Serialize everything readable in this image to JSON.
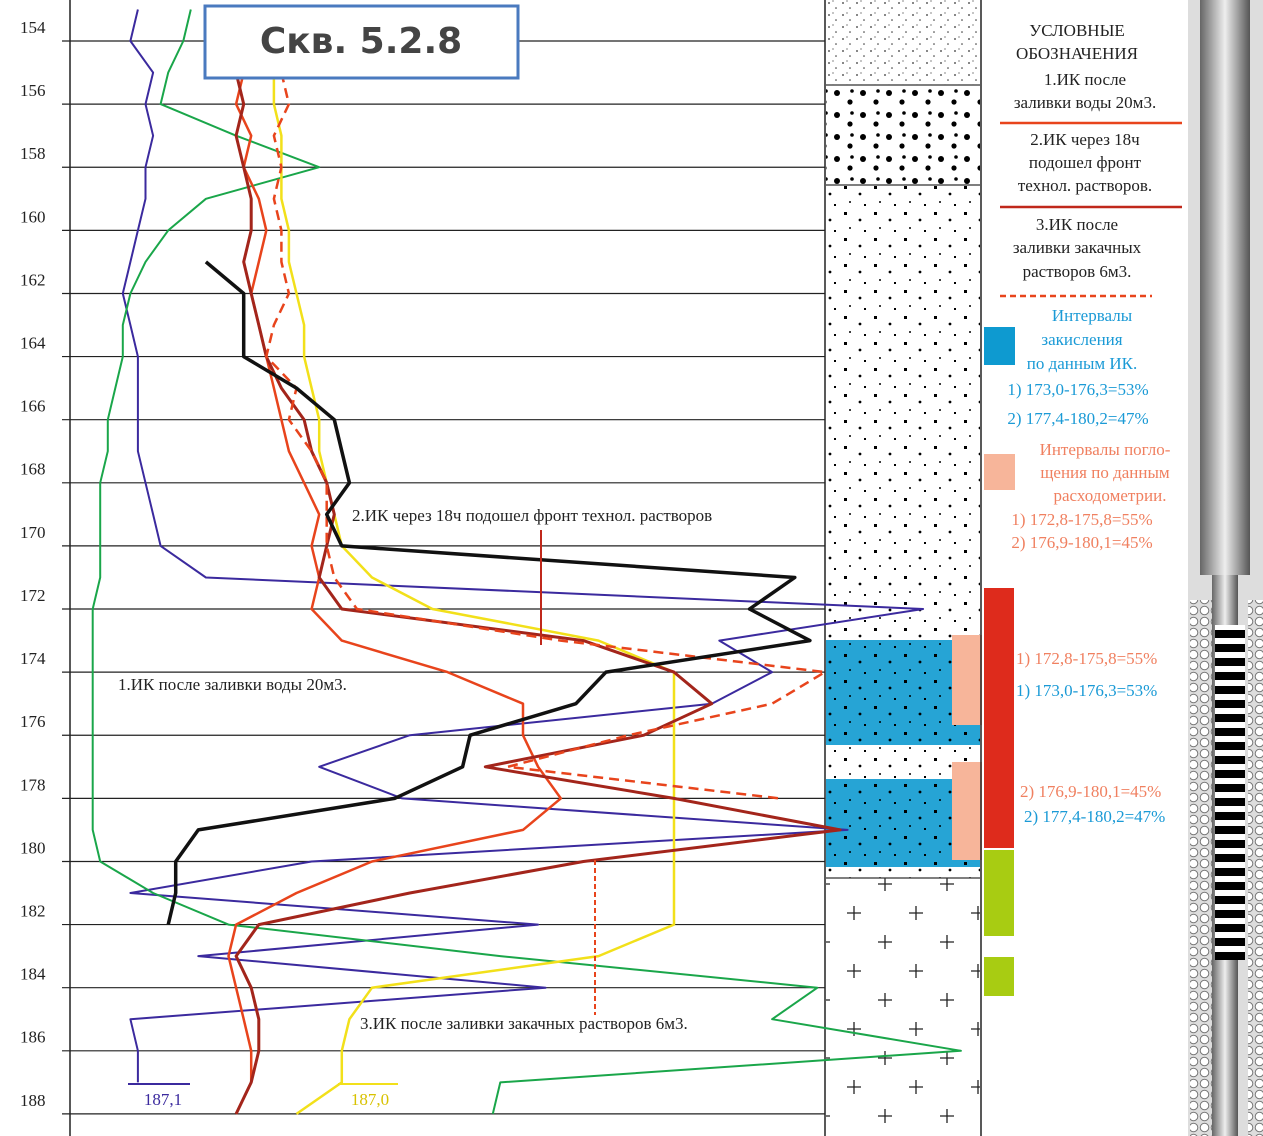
{
  "chart_data": {
    "type": "line",
    "title": "Скв. 5.2.8",
    "ylim": [
      152.7,
      188.7
    ],
    "yticks": [
      154,
      156,
      158,
      160,
      162,
      164,
      166,
      168,
      170,
      172,
      174,
      176,
      178,
      180,
      182,
      184,
      186,
      188
    ],
    "xlim": [
      0,
      120
    ],
    "grid": true,
    "depths": [
      153,
      154,
      155,
      156,
      157,
      158,
      159,
      160,
      161,
      162,
      163,
      164,
      165,
      166,
      167,
      168,
      169,
      170,
      171,
      172,
      173,
      174,
      175,
      176,
      177,
      178,
      179,
      180,
      181,
      182,
      183,
      184,
      185,
      186,
      187,
      188
    ],
    "series": [
      {
        "name": "1.ИК после заливки воды 20м3.",
        "color": "#3b2a9e",
        "dash": false,
        "width": 2,
        "values": [
          9,
          8,
          11,
          10,
          11,
          10,
          10,
          9,
          8,
          7,
          8,
          9,
          9,
          9,
          9,
          10,
          11,
          12,
          18,
          113,
          86,
          93,
          85,
          45,
          33,
          44,
          103,
          32,
          8,
          62,
          17,
          63,
          8,
          9,
          9,
          null
        ]
      },
      {
        "name": "green",
        "color": "#1aa64a",
        "dash": false,
        "width": 2,
        "values": [
          16,
          15,
          13,
          12,
          22,
          33,
          18,
          13,
          10,
          8,
          7,
          7,
          6,
          5,
          5,
          4,
          4,
          4,
          4,
          3,
          3,
          3,
          3,
          3,
          3,
          3,
          3,
          4,
          11,
          21,
          57,
          99,
          93,
          118,
          57,
          56
        ]
      },
      {
        "name": "yellow",
        "color": "#f2e01a",
        "dash": false,
        "width": 2.5,
        "values": [
          26,
          26,
          27,
          27,
          28,
          28,
          28,
          29,
          29,
          30,
          31,
          31,
          32,
          33,
          33,
          34,
          35,
          36,
          40,
          48,
          70,
          80,
          80,
          80,
          80,
          80,
          80,
          80,
          80,
          80,
          70,
          40,
          37,
          36,
          36,
          30
        ]
      },
      {
        "name": "2.ИК через 18ч подошел фронт технол. растворов",
        "color": "#e8441c",
        "dash": false,
        "width": 2.5,
        "values": [
          22,
          22,
          23,
          22,
          24,
          23,
          25,
          26,
          25,
          24,
          25,
          26,
          27,
          28,
          29,
          31,
          33,
          32,
          33,
          32,
          36,
          50,
          60,
          60,
          62,
          65,
          60,
          40,
          30,
          22,
          21,
          22,
          23,
          24,
          24,
          22
        ]
      },
      {
        "name": "dark-red",
        "color": "#a3251b",
        "dash": false,
        "width": 3,
        "values": [
          22,
          22,
          22,
          23,
          22,
          23,
          24,
          24,
          23,
          24,
          25,
          26,
          28,
          31,
          32,
          34,
          35,
          34,
          33,
          36,
          68,
          80,
          85,
          76,
          55,
          80,
          102,
          68,
          45,
          25,
          22,
          24,
          25,
          25,
          24,
          22
        ]
      },
      {
        "name": "3.ИК после заливки закачных растворов 6м3.",
        "color": "#e8441c",
        "dash": true,
        "width": 2.5,
        "values": [
          null,
          null,
          28,
          29,
          27,
          28,
          27,
          28,
          28,
          29,
          27,
          26,
          30,
          29,
          32,
          34,
          34,
          34,
          35,
          38,
          65,
          100,
          93,
          74,
          58,
          94,
          null,
          null,
          null,
          null,
          null,
          null,
          null,
          null,
          null,
          null
        ]
      },
      {
        "name": "black",
        "color": "#111",
        "dash": false,
        "width": 3.5,
        "values": [
          null,
          null,
          null,
          null,
          null,
          null,
          null,
          null,
          18,
          23,
          23,
          23,
          30,
          35,
          36,
          37,
          34,
          36,
          96,
          90,
          98,
          71,
          67,
          53,
          52,
          43,
          17,
          14,
          14,
          13,
          null,
          null,
          null,
          null,
          null,
          null
        ]
      }
    ],
    "annotations": [
      "2.ИК через 18ч подошел фронт технол. растворов",
      "1.ИК после заливки воды 20м3.",
      "3.ИК после заливки закачных растворов 6м3.",
      "187,1",
      "187,0"
    ],
    "interval_labels": [
      "1) 172,8-175,8=55%",
      "1) 173,0-176,3=53%",
      "2) 176,9-180,1=45%",
      "2) 177,4-180,2=47%"
    ]
  },
  "legend_panel": [
    "УСЛОВНЫЕ",
    "ОБОЗНАЧЕНИЯ",
    "1.ИК после",
    "заливки воды 20м3.",
    "2.ИК через 18ч",
    "подошел фронт",
    "технол. растворов.",
    "3.ИК после",
    "заливки закачных",
    "растворов 6м3.",
    "Интервалы",
    "закисления",
    "по данным ИК.",
    "1) 173,0-176,3=53%",
    "2) 177,4-180,2=47%",
    "Интервалы погло-",
    "щения по данным",
    "расходометрии.",
    "1) 172,8-175,8=55%",
    "2) 176,9-180,1=45%"
  ]
}
